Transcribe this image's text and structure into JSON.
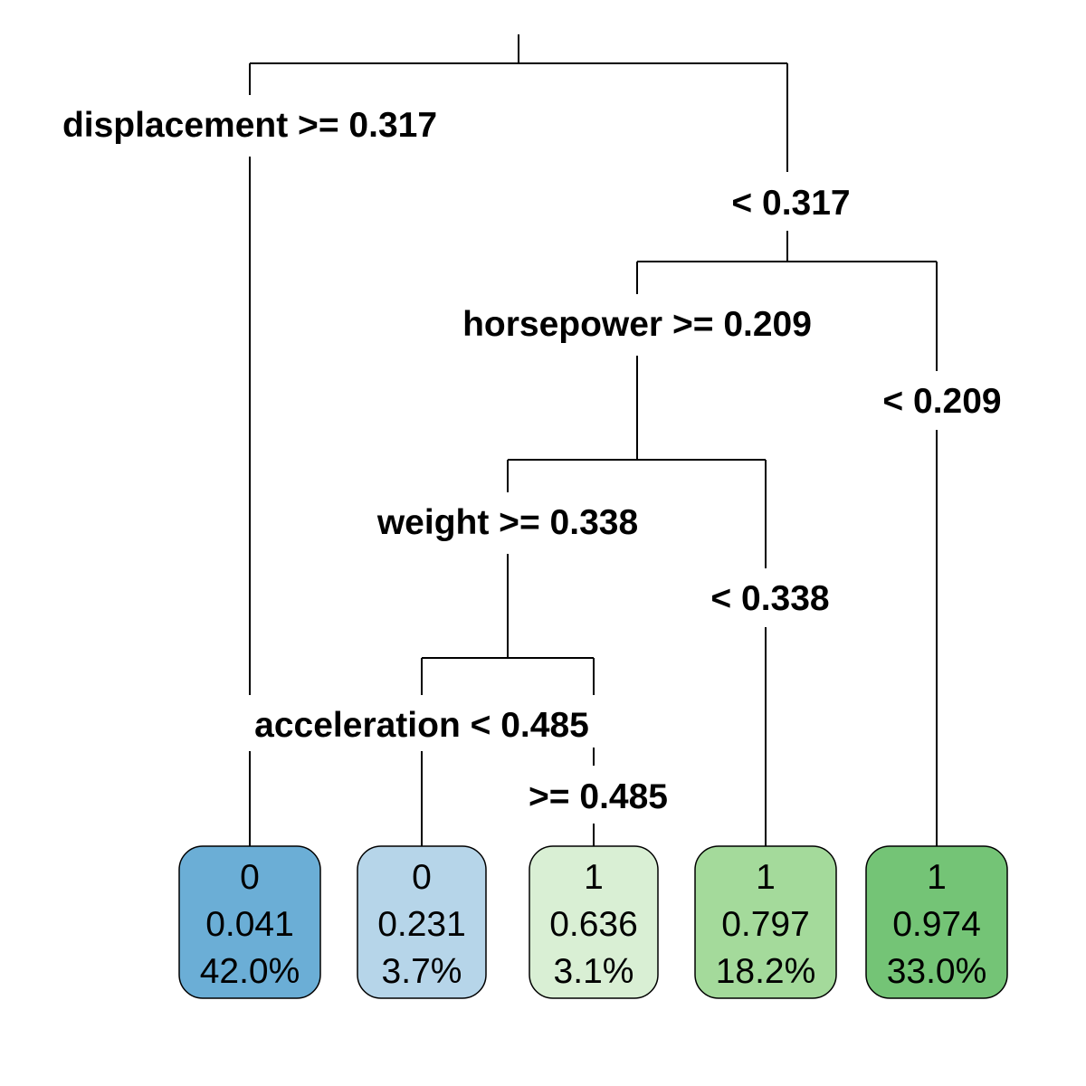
{
  "splits": {
    "root": {
      "left": "displacement >= 0.317",
      "right": "< 0.317"
    },
    "n2": {
      "left": "horsepower >= 0.209",
      "right": "< 0.209"
    },
    "n3": {
      "left": "weight >= 0.338",
      "right": "< 0.338"
    },
    "n4": {
      "left": "acceleration < 0.485",
      "right": ">= 0.485"
    }
  },
  "leaves": [
    {
      "class": "0",
      "prob": "0.041",
      "pct": "42.0%",
      "color": "#6BAED6"
    },
    {
      "class": "0",
      "prob": "0.231",
      "pct": "3.7%",
      "color": "#B6D5E9"
    },
    {
      "class": "1",
      "prob": "0.636",
      "pct": "3.1%",
      "color": "#D9EFD4"
    },
    {
      "class": "1",
      "prob": "0.797",
      "pct": "18.2%",
      "color": "#A4DA9B"
    },
    {
      "class": "1",
      "prob": "0.974",
      "pct": "33.0%",
      "color": "#74C476"
    }
  ]
}
